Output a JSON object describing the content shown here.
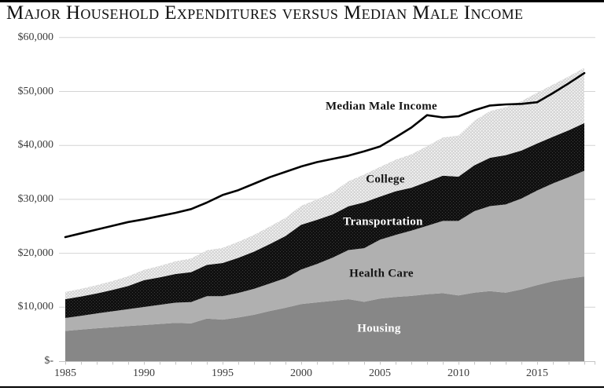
{
  "title": "Major Household Expenditures versus Median Male Income",
  "chart_data": {
    "type": "area",
    "stacked": true,
    "grid": "horizontal",
    "legend": "inline-labels",
    "x": [
      1985,
      1986,
      1987,
      1988,
      1989,
      1990,
      1991,
      1992,
      1993,
      1994,
      1995,
      1996,
      1997,
      1998,
      1999,
      2000,
      2001,
      2002,
      2003,
      2004,
      2005,
      2006,
      2007,
      2008,
      2009,
      2010,
      2011,
      2012,
      2013,
      2014,
      2015,
      2016,
      2017,
      2018
    ],
    "series": [
      {
        "name": "Housing",
        "fill": "#878787",
        "texture": "solid",
        "values": [
          5600,
          5850,
          6100,
          6300,
          6500,
          6700,
          6900,
          7100,
          7000,
          7900,
          7700,
          8100,
          8600,
          9300,
          9900,
          10600,
          10900,
          11200,
          11500,
          11000,
          11600,
          11900,
          12100,
          12400,
          12600,
          12200,
          12700,
          13000,
          12700,
          13300,
          14100,
          14800,
          15300,
          15700
        ]
      },
      {
        "name": "Health Care",
        "fill": "#b0b0b0",
        "texture": "solid",
        "values": [
          2400,
          2550,
          2750,
          2950,
          3150,
          3350,
          3550,
          3750,
          3950,
          4150,
          4350,
          4550,
          4800,
          5100,
          5500,
          6400,
          7100,
          8000,
          9100,
          9950,
          10900,
          11500,
          12100,
          12700,
          13400,
          13800,
          15100,
          15750,
          16350,
          16850,
          17550,
          18150,
          18800,
          19600
        ]
      },
      {
        "name": "Transportation",
        "fill": "#101010",
        "texture": "dotted-dark",
        "values": [
          3500,
          3600,
          3700,
          3950,
          4300,
          4950,
          5100,
          5300,
          5550,
          5800,
          6150,
          6500,
          6900,
          7300,
          7800,
          8300,
          8200,
          8000,
          8100,
          8500,
          8000,
          8100,
          7950,
          8150,
          8400,
          8200,
          8500,
          8950,
          9150,
          8900,
          8700,
          8650,
          8700,
          8850
        ]
      },
      {
        "name": "College",
        "fill": "#d9d9d9",
        "texture": "dotted-light",
        "values": [
          1320,
          1410,
          1540,
          1650,
          1780,
          1910,
          2110,
          2350,
          2540,
          2700,
          2810,
          2980,
          3110,
          3250,
          3360,
          3510,
          3770,
          4100,
          4650,
          5130,
          5490,
          5840,
          6190,
          6600,
          7070,
          7610,
          8250,
          8650,
          8890,
          9150,
          9410,
          9650,
          9970,
          10230
        ]
      }
    ],
    "line_series": {
      "name": "Median Male Income",
      "color": "#000000",
      "values": [
        23000,
        23700,
        24400,
        25100,
        25800,
        26300,
        26900,
        27500,
        28200,
        29400,
        30800,
        31700,
        32900,
        34100,
        35100,
        36100,
        36900,
        37500,
        38100,
        38900,
        39800,
        41500,
        43300,
        45600,
        45200,
        45400,
        46500,
        47400,
        47600,
        47700,
        48000,
        49700,
        51500,
        53400
      ]
    },
    "ylim": [
      0,
      60000
    ],
    "y_ticks": [
      "$60,000",
      "$50,000",
      "$40,000",
      "$30,000",
      "$20,000",
      "$10,000",
      "$-"
    ],
    "x_ticks": [
      "1985",
      "1990",
      "1995",
      "2000",
      "2005",
      "2010",
      "2015"
    ],
    "gridline_color": "#d4d4d4",
    "axis_color": "#c4c4c4"
  }
}
